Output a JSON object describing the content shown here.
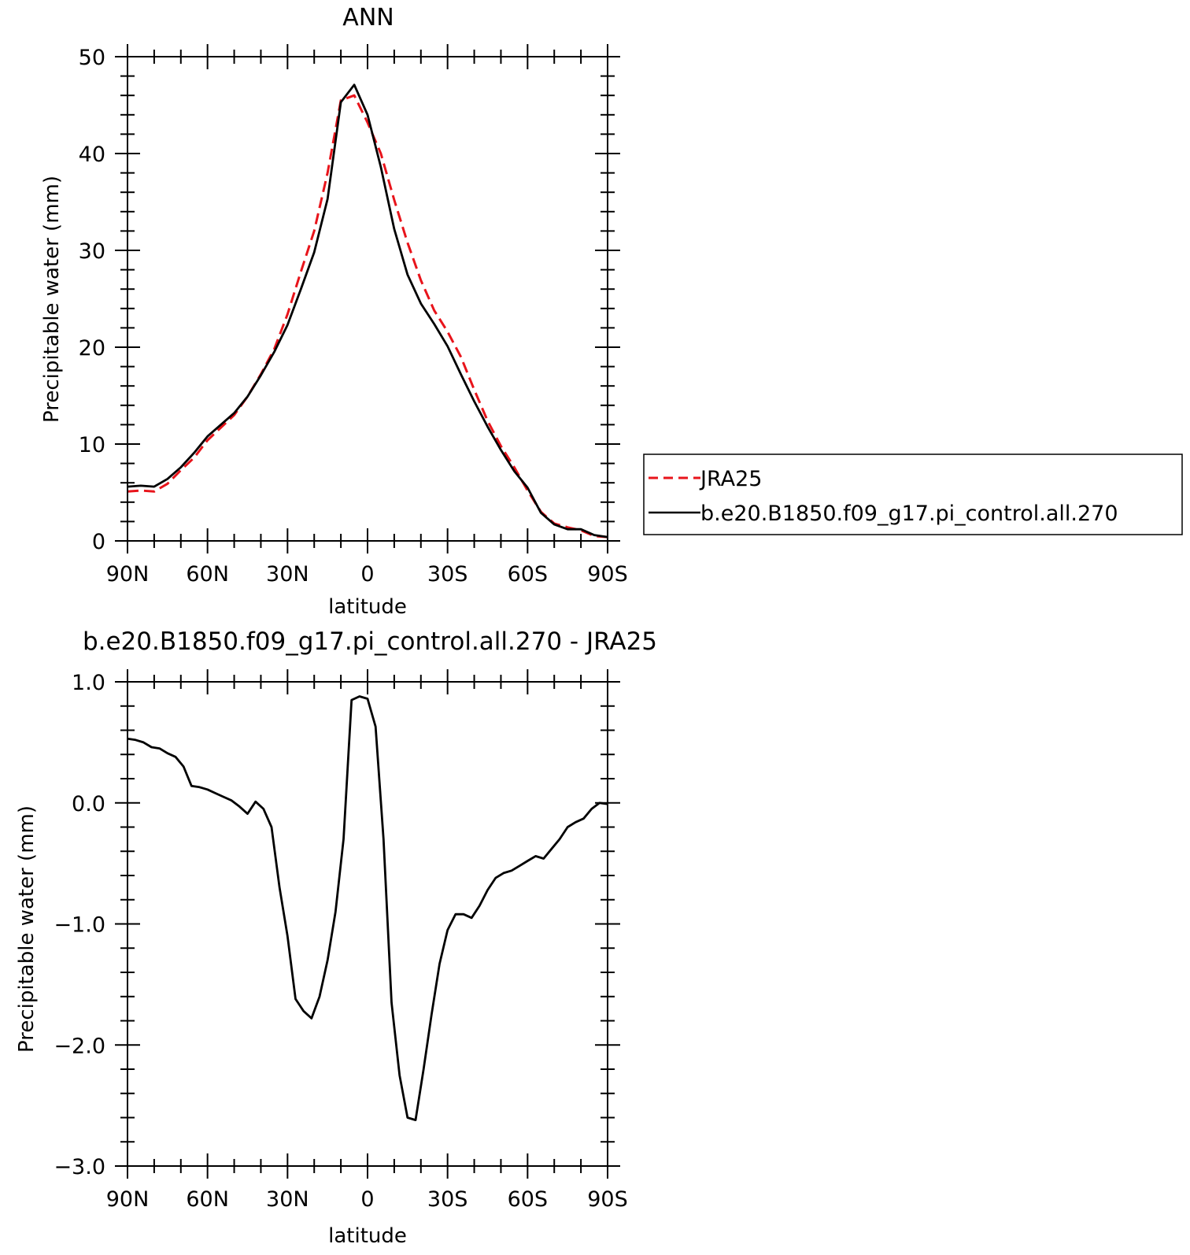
{
  "chart_data": [
    {
      "type": "line",
      "title": "ANN",
      "xlabel": "latitude",
      "ylabel": "Precipitable water (mm)",
      "xlim": [
        90,
        -90
      ],
      "ylim": [
        0,
        50
      ],
      "x_ticks": [
        90,
        60,
        30,
        0,
        -30,
        -60,
        -90
      ],
      "x_tick_labels": [
        "90N",
        "60N",
        "30N",
        "0",
        "30S",
        "60S",
        "90S"
      ],
      "y_ticks": [
        0,
        10,
        20,
        30,
        40,
        50
      ],
      "y_tick_labels": [
        "0",
        "10",
        "20",
        "30",
        "40",
        "50"
      ],
      "legend_placement": "right",
      "series": [
        {
          "name": "JRA25",
          "color": "#e8141b",
          "dash": true,
          "x": [
            90,
            85,
            80,
            75,
            70,
            65,
            60,
            55,
            50,
            45,
            40,
            35,
            30,
            25,
            20,
            15,
            10,
            5,
            0,
            -5,
            -10,
            -15,
            -20,
            -25,
            -30,
            -35,
            -40,
            -45,
            -50,
            -55,
            -60,
            -65,
            -70,
            -75,
            -80,
            -85,
            -90
          ],
          "y": [
            5.1,
            5.2,
            5.1,
            5.9,
            7.3,
            8.6,
            10.4,
            11.7,
            13.0,
            14.9,
            17.2,
            19.8,
            23.4,
            27.8,
            32.0,
            38.0,
            45.5,
            46.0,
            43.2,
            40.0,
            35.2,
            30.8,
            26.9,
            23.8,
            21.6,
            19.0,
            15.6,
            12.4,
            9.8,
            7.6,
            5.2,
            3.0,
            1.8,
            1.4,
            1.1,
            0.5,
            0.4
          ]
        },
        {
          "name": "b.e20.B1850.f09_g17.pi_control.all.270",
          "color": "#000000",
          "dash": false,
          "x": [
            90,
            85,
            80,
            75,
            70,
            65,
            60,
            55,
            50,
            45,
            40,
            35,
            30,
            25,
            20,
            15,
            10,
            5,
            0,
            -5,
            -10,
            -15,
            -20,
            -25,
            -30,
            -35,
            -40,
            -45,
            -50,
            -55,
            -60,
            -65,
            -70,
            -75,
            -80,
            -85,
            -90
          ],
          "y": [
            5.6,
            5.7,
            5.6,
            6.4,
            7.6,
            9.1,
            10.8,
            12.0,
            13.2,
            14.9,
            17.1,
            19.5,
            22.3,
            26.0,
            29.8,
            35.3,
            45.3,
            47.1,
            44.0,
            38.6,
            32.2,
            27.5,
            24.5,
            22.4,
            20.1,
            17.2,
            14.4,
            11.8,
            9.4,
            7.2,
            5.5,
            2.9,
            1.7,
            1.2,
            1.2,
            0.6,
            0.4
          ]
        }
      ]
    },
    {
      "type": "line",
      "title": "b.e20.B1850.f09_g17.pi_control.all.270 - JRA25",
      "xlabel": "latitude",
      "ylabel": "Precipitable water (mm)",
      "xlim": [
        90,
        -90
      ],
      "ylim": [
        -3.0,
        1.0
      ],
      "x_ticks": [
        90,
        60,
        30,
        0,
        -30,
        -60,
        -90
      ],
      "x_tick_labels": [
        "90N",
        "60N",
        "30N",
        "0",
        "30S",
        "60S",
        "90S"
      ],
      "y_ticks": [
        1.0,
        0.0,
        -1.0,
        -2.0,
        -3.0
      ],
      "y_tick_labels": [
        "1.0",
        "0.0",
        "−1.0",
        "−2.0",
        "−3.0"
      ],
      "series": [
        {
          "color": "#000000",
          "x": [
            90,
            87,
            84,
            81,
            78,
            75,
            72,
            69,
            66,
            63,
            60,
            57,
            54,
            51,
            48,
            45,
            42,
            39,
            36,
            33,
            30,
            27,
            24,
            21,
            18,
            15,
            12,
            9,
            6,
            3,
            0,
            -3,
            -6,
            -9,
            -12,
            -15,
            -18,
            -21,
            -24,
            -27,
            -30,
            -33,
            -36,
            -39,
            -42,
            -45,
            -48,
            -51,
            -54,
            -57,
            -60,
            -63,
            -66,
            -69,
            -72,
            -75,
            -78,
            -81,
            -84,
            -87,
            -90
          ],
          "y": [
            0.53,
            0.52,
            0.5,
            0.46,
            0.45,
            0.41,
            0.38,
            0.3,
            0.14,
            0.13,
            0.11,
            0.08,
            0.05,
            0.02,
            -0.03,
            -0.09,
            0.01,
            -0.05,
            -0.2,
            -0.7,
            -1.1,
            -1.62,
            -1.72,
            -1.78,
            -1.6,
            -1.3,
            -0.9,
            -0.3,
            0.85,
            0.88,
            0.86,
            0.63,
            -0.3,
            -1.65,
            -2.25,
            -2.6,
            -2.62,
            -2.2,
            -1.75,
            -1.33,
            -1.05,
            -0.92,
            -0.92,
            -0.95,
            -0.85,
            -0.72,
            -0.62,
            -0.58,
            -0.56,
            -0.52,
            -0.48,
            -0.44,
            -0.46,
            -0.38,
            -0.3,
            -0.2,
            -0.16,
            -0.13,
            -0.05,
            0.0,
            -0.01
          ]
        }
      ]
    }
  ]
}
